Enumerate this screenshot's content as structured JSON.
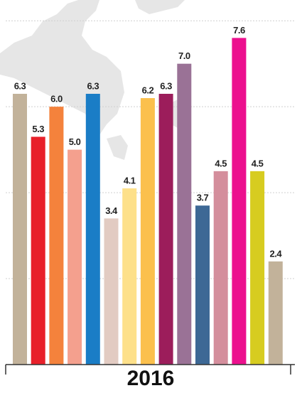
{
  "chart_data": {
    "type": "bar",
    "title": "2016",
    "categories": [
      null,
      null,
      null,
      null,
      null,
      null,
      null,
      null,
      null,
      null,
      null,
      null,
      null,
      null,
      null
    ],
    "values": [
      6.3,
      5.3,
      6.0,
      5.0,
      6.3,
      3.4,
      4.1,
      6.2,
      6.3,
      7.0,
      3.7,
      4.5,
      7.6,
      4.5,
      2.4
    ],
    "value_labels": [
      "6.3",
      "5.3",
      "6.0",
      "5.0",
      "6.3",
      "3.4",
      "4.1",
      "6.2",
      "6.3",
      "7.0",
      "3.7",
      "4.5",
      "7.6",
      "4.5",
      "2.4"
    ],
    "colors": [
      "#c2b29a",
      "#e8202a",
      "#f4823c",
      "#f4a08e",
      "#1a7dc6",
      "#e2cbc2",
      "#fde08a",
      "#fbc04d",
      "#9c1d5b",
      "#9a7296",
      "#3d6895",
      "#d48e9c",
      "#ec108e",
      "#d7cc20",
      "#c2b29a"
    ],
    "ylim": [
      0,
      8.4
    ],
    "yticks": [
      2,
      4,
      6,
      8
    ],
    "grid": true
  }
}
